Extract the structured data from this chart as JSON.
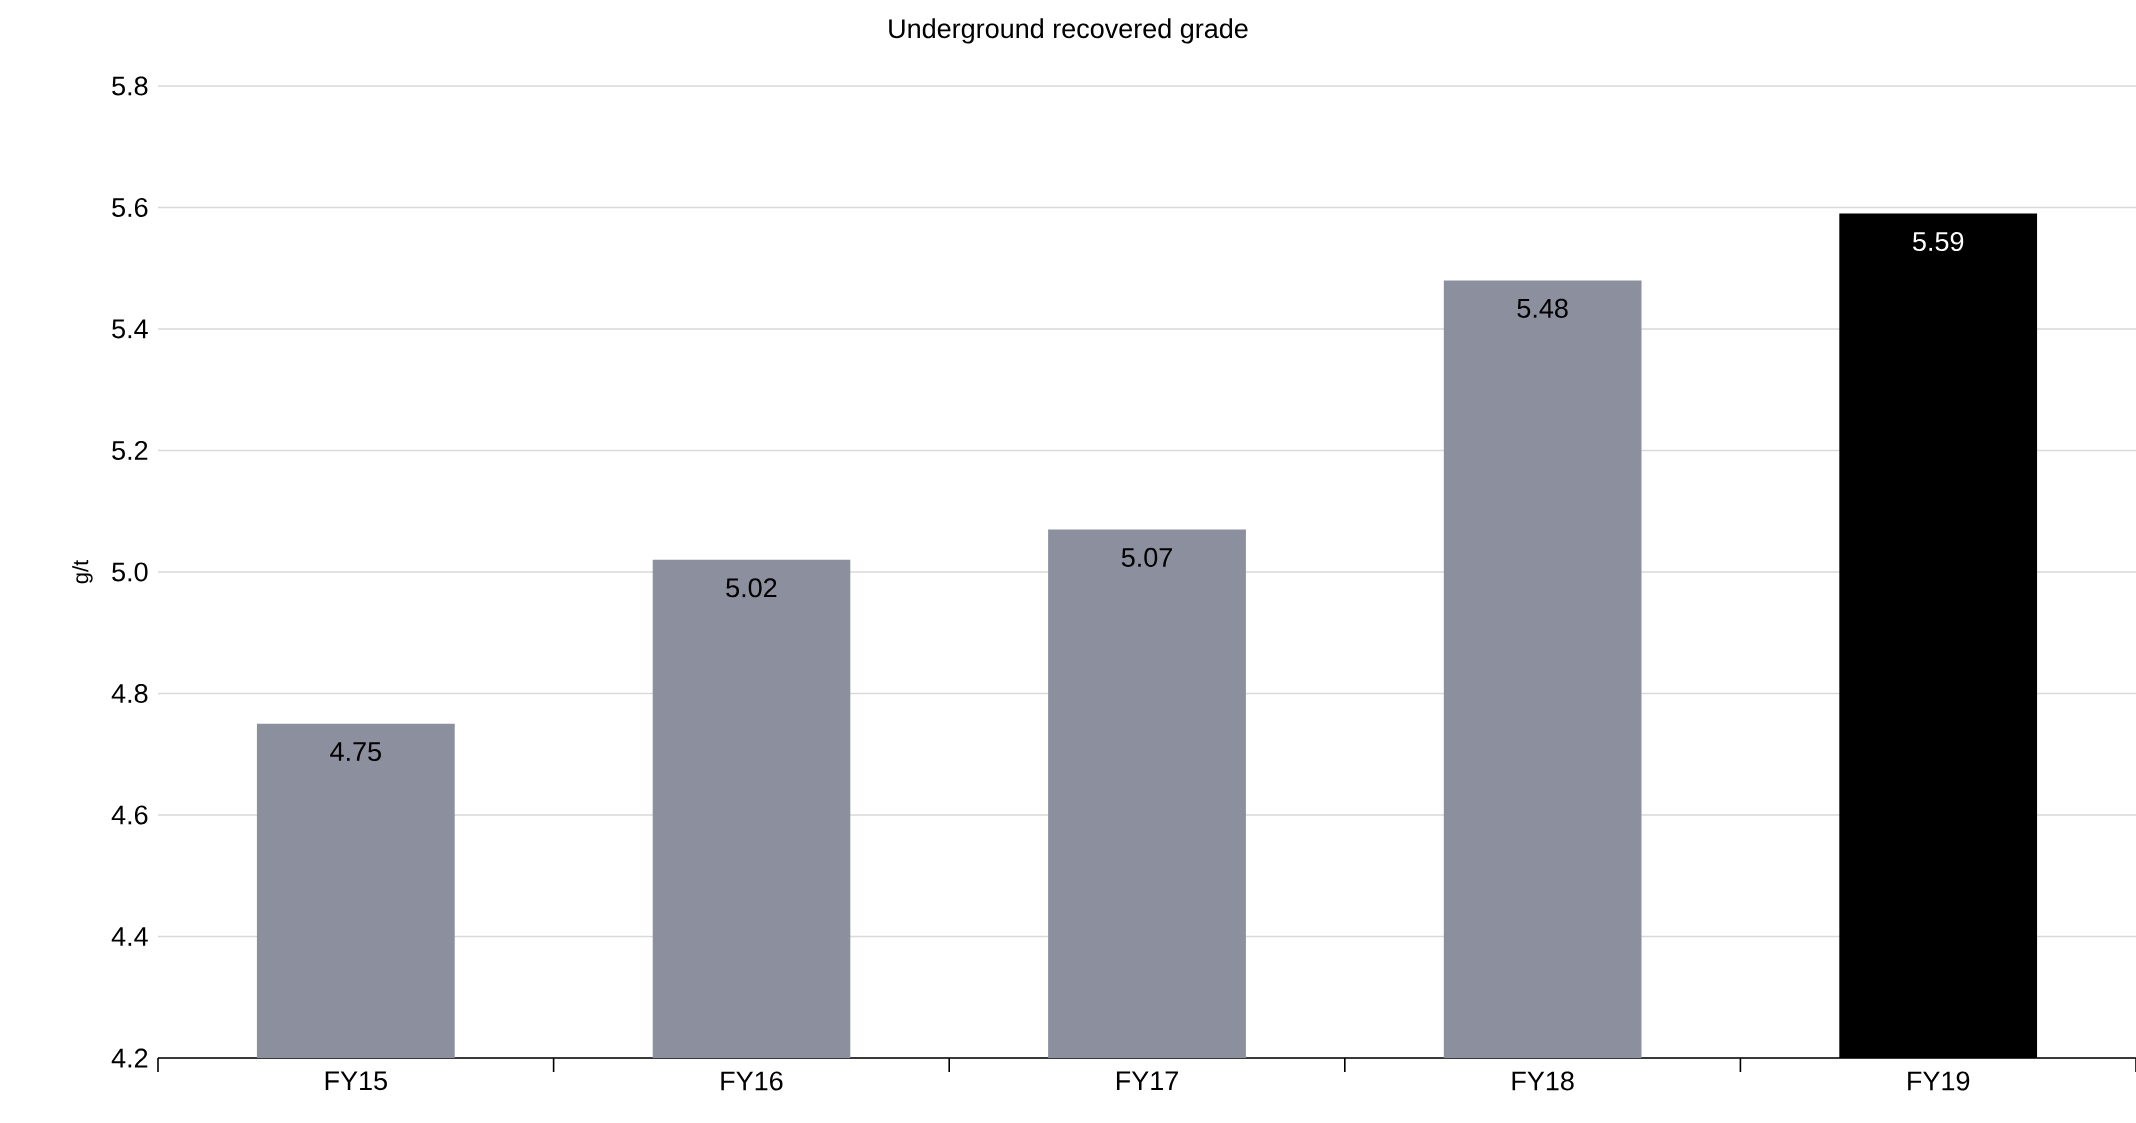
{
  "chart_data": {
    "type": "bar",
    "title": "Underground recovered grade",
    "ylabel": "g/t",
    "categories": [
      "FY15",
      "FY16",
      "FY17",
      "FY18",
      "FY19"
    ],
    "values": [
      4.75,
      5.02,
      5.07,
      5.48,
      5.59
    ],
    "colors": [
      "#8c8f9e",
      "#8c8f9e",
      "#8c8f9e",
      "#8c8f9e",
      "#000000"
    ],
    "ylim": [
      4.2,
      5.8
    ],
    "yticks": [
      4.2,
      4.4,
      4.6,
      4.8,
      {
        "value": 5.0,
        "label": "5.0"
      },
      5.2,
      5.4,
      5.6,
      5.8
    ],
    "grid": "y",
    "data_labels": true
  }
}
